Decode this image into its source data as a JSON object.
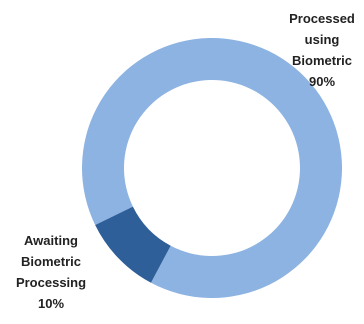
{
  "chart_data": {
    "type": "donut",
    "categories": [
      "Processed using Biometric",
      "Awaiting Biometric Processing"
    ],
    "values": [
      90,
      10
    ],
    "value_labels": [
      "90%",
      "10%"
    ],
    "colors": [
      "#8db3e2",
      "#2e5f99"
    ]
  }
}
